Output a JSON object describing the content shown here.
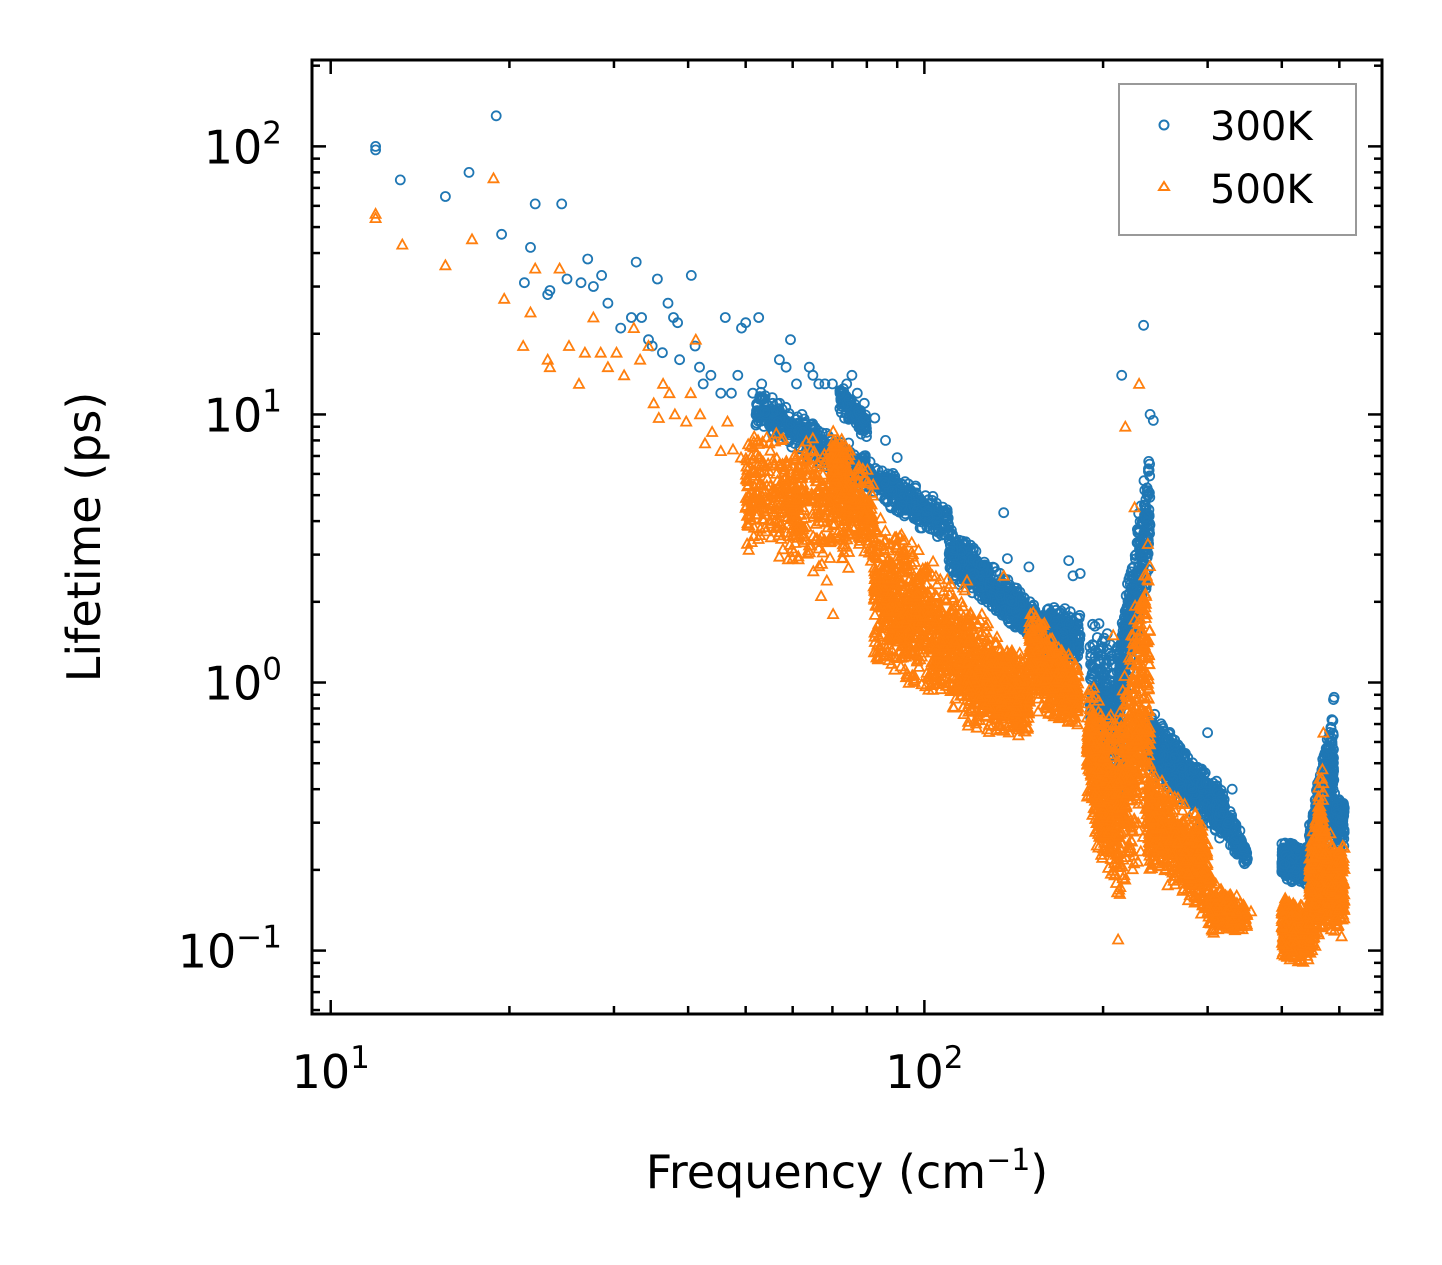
{
  "chart_data": {
    "type": "scatter",
    "xscale": "log",
    "yscale": "log",
    "xlim": [
      9.3,
      590
    ],
    "ylim": [
      0.058,
      210
    ],
    "xlabel": {
      "text": "Frequency (cm",
      "superscript": "−1",
      "suffix": ")"
    },
    "ylabel": "Lifetime (ps)",
    "x_ticks": [
      {
        "base": "10",
        "exp": "1",
        "value": 10
      },
      {
        "base": "10",
        "exp": "2",
        "value": 100
      }
    ],
    "y_ticks": [
      {
        "base": "10",
        "exp": "2",
        "value": 100
      },
      {
        "base": "10",
        "exp": "1",
        "value": 10
      },
      {
        "base": "10",
        "exp": "0",
        "value": 1
      },
      {
        "base": "10",
        "exp": "−1",
        "value": 0.1
      }
    ],
    "tick_direction": "in",
    "legend": {
      "position": "top-right"
    },
    "series": [
      {
        "name": "300K",
        "marker": "circle",
        "color": "#1f77b4",
        "points": [
          [
            11.9,
            100
          ],
          [
            11.9,
            97
          ],
          [
            13.1,
            75
          ],
          [
            15.6,
            65
          ],
          [
            17.1,
            80
          ],
          [
            19,
            130
          ],
          [
            19.4,
            47
          ],
          [
            21.2,
            31
          ],
          [
            21.7,
            42
          ],
          [
            22.1,
            61
          ],
          [
            23.2,
            28
          ],
          [
            23.4,
            29
          ],
          [
            24.5,
            61
          ],
          [
            25,
            32
          ],
          [
            26.4,
            31
          ],
          [
            27.1,
            38
          ],
          [
            27.7,
            30
          ],
          [
            28.6,
            33
          ],
          [
            29.3,
            26
          ],
          [
            30.8,
            21
          ],
          [
            32.1,
            23
          ],
          [
            32.7,
            37
          ],
          [
            33.4,
            23
          ],
          [
            34.3,
            19
          ],
          [
            34.8,
            18
          ],
          [
            35.5,
            32
          ],
          [
            36.2,
            17
          ],
          [
            37,
            26
          ],
          [
            37.8,
            23
          ],
          [
            38.4,
            22
          ],
          [
            38.7,
            16
          ],
          [
            40.5,
            33
          ],
          [
            41.1,
            18
          ],
          [
            41.8,
            15
          ],
          [
            42.4,
            13
          ],
          [
            43.7,
            14
          ],
          [
            45.4,
            12
          ],
          [
            46.2,
            23
          ],
          [
            47.3,
            12
          ],
          [
            48.5,
            14
          ],
          [
            49.2,
            21
          ],
          [
            50,
            22
          ],
          [
            51.4,
            12
          ],
          [
            52.6,
            23
          ],
          [
            53.2,
            13
          ],
          [
            55.5,
            11
          ],
          [
            57,
            16
          ],
          [
            58.5,
            15
          ],
          [
            59.5,
            19
          ],
          [
            60.9,
            13
          ],
          [
            62.2,
            10
          ],
          [
            64,
            15
          ],
          [
            64.9,
            14
          ],
          [
            66.4,
            13
          ],
          [
            68,
            13
          ],
          [
            70,
            13
          ],
          [
            72.1,
            12
          ],
          [
            74,
            13
          ],
          [
            75.5,
            14
          ],
          [
            77.1,
            12
          ],
          [
            79.2,
            11
          ],
          [
            82.5,
            9.7
          ],
          [
            86,
            8
          ],
          [
            90,
            6.9
          ]
        ],
        "bands": [
          {
            "x": [
              52,
              110
            ],
            "y_start": [
              13,
              4.6
            ],
            "y_end": [
              9,
              3.2
            ],
            "count": 700
          },
          {
            "x": [
              72,
              80
            ],
            "y_start": [
              13,
              10
            ],
            "y_end": [
              10,
              8
            ],
            "count": 120
          },
          {
            "x": [
              110,
              160
            ],
            "y_start": [
              4,
              1.8
            ],
            "y_end": [
              2.4,
              1.3
            ],
            "count": 600
          },
          {
            "x": [
              160,
              183
            ],
            "y_start": [
              2,
              1.9
            ],
            "y_end": [
              1.2,
              1.1
            ],
            "count": 250
          },
          {
            "x": [
              190,
              215
            ],
            "y_start": [
              1.8,
              1.5
            ],
            "y_end": [
              0.45,
              0.28
            ],
            "count": 300
          },
          {
            "x": [
              212,
              240
            ],
            "y_start": [
              1.5,
              8
            ],
            "y_end": [
              0.6,
              2.5
            ],
            "count": 400
          },
          {
            "x": [
              240,
              320
            ],
            "y_start": [
              0.8,
              0.4
            ],
            "y_end": [
              0.45,
              0.25
            ],
            "count": 600
          },
          {
            "x": [
              310,
              350
            ],
            "y_start": [
              0.45,
              0.24
            ],
            "y_end": [
              0.28,
              0.2
            ],
            "count": 160
          },
          {
            "x": [
              400,
              445
            ],
            "y_start": [
              0.26,
              0.25
            ],
            "y_end": [
              0.18,
              0.17
            ],
            "count": 350
          },
          {
            "x": [
              445,
              490
            ],
            "y_start": [
              0.3,
              1.0
            ],
            "y_end": [
              0.19,
              0.25
            ],
            "count": 400
          },
          {
            "x": [
              490,
              510
            ],
            "y_start": [
              0.4,
              0.4
            ],
            "y_end": [
              0.25,
              0.23
            ],
            "count": 120
          }
        ],
        "extra_points": [
          [
            136,
            4.3
          ],
          [
            138,
            2.9
          ],
          [
            150,
            2.7
          ],
          [
            175,
            2.85
          ],
          [
            178,
            2.5
          ],
          [
            183,
            2.55
          ],
          [
            215,
            14
          ],
          [
            234,
            21.5
          ],
          [
            240,
            10
          ],
          [
            243,
            9.5
          ],
          [
            300,
            0.42
          ],
          [
            330,
            0.4
          ],
          [
            340,
            0.28
          ],
          [
            350,
            0.22
          ],
          [
            325,
            0.3
          ],
          [
            300,
            0.65
          ]
        ]
      },
      {
        "name": "500K",
        "marker": "triangle",
        "color": "#ff7f0e",
        "points": [
          [
            11.9,
            56
          ],
          [
            11.9,
            54
          ],
          [
            13.2,
            43
          ],
          [
            15.6,
            36
          ],
          [
            17.3,
            45
          ],
          [
            18.8,
            76
          ],
          [
            19.6,
            27
          ],
          [
            21.1,
            18
          ],
          [
            21.7,
            24
          ],
          [
            22.1,
            35
          ],
          [
            23.2,
            16
          ],
          [
            23.4,
            15
          ],
          [
            24.3,
            35
          ],
          [
            25.2,
            18
          ],
          [
            26.2,
            13
          ],
          [
            26.8,
            17
          ],
          [
            27.7,
            23
          ],
          [
            28.5,
            17
          ],
          [
            29.3,
            15
          ],
          [
            30.3,
            17
          ],
          [
            31.2,
            14
          ],
          [
            32.4,
            21
          ],
          [
            33.2,
            16
          ],
          [
            34.3,
            18
          ],
          [
            35,
            11
          ],
          [
            35.7,
            9.7
          ],
          [
            36.3,
            13
          ],
          [
            37.2,
            12
          ],
          [
            38,
            10
          ],
          [
            39.7,
            9.4
          ],
          [
            40.4,
            12
          ],
          [
            41.2,
            19
          ],
          [
            41.9,
            10
          ],
          [
            42.7,
            7.8
          ],
          [
            43.9,
            8.6
          ],
          [
            45.4,
            7.3
          ],
          [
            46.6,
            9.4
          ],
          [
            47.6,
            7.4
          ],
          [
            49.1,
            6.9
          ],
          [
            50.2,
            6.4
          ],
          [
            51.4,
            6.1
          ],
          [
            53.4,
            7.9
          ],
          [
            54.8,
            7.8
          ],
          [
            56.3,
            8.5
          ],
          [
            58.1,
            6.1
          ],
          [
            59.9,
            4.7
          ],
          [
            61.1,
            4.8
          ],
          [
            63.4,
            3.4
          ],
          [
            65,
            2.6
          ],
          [
            67,
            2.1
          ],
          [
            68.5,
            2.4
          ],
          [
            70.2,
            1.8
          ]
        ],
        "bands": [
          {
            "x": [
              50,
              75
            ],
            "y_start": [
              9,
              8
            ],
            "y_end": [
              3,
              2.5
            ],
            "count": 500
          },
          {
            "x": [
              70,
              82
            ],
            "y_start": [
              9,
              6
            ],
            "y_end": [
              5,
              2.5
            ],
            "count": 250
          },
          {
            "x": [
              82,
              118
            ],
            "y_start": [
              5,
              2.2
            ],
            "y_end": [
              1.1,
              0.7
            ],
            "count": 800
          },
          {
            "x": [
              118,
              150
            ],
            "y_start": [
              2,
              1.2
            ],
            "y_end": [
              0.65,
              0.6
            ],
            "count": 700
          },
          {
            "x": [
              150,
              182
            ],
            "y_start": [
              2,
              1.2
            ],
            "y_end": [
              0.8,
              0.65
            ],
            "count": 450
          },
          {
            "x": [
              188,
              210
            ],
            "y_start": [
              1.1,
              0.8
            ],
            "y_end": [
              0.32,
              0.14
            ],
            "count": 400
          },
          {
            "x": [
              210,
              240
            ],
            "y_start": [
              0.8,
              4.5
            ],
            "y_end": [
              0.14,
              0.25
            ],
            "count": 500
          },
          {
            "x": [
              238,
              300
            ],
            "y_start": [
              0.5,
              0.3
            ],
            "y_end": [
              0.2,
              0.13
            ],
            "count": 600
          },
          {
            "x": [
              300,
              350
            ],
            "y_start": [
              0.2,
              0.15
            ],
            "y_end": [
              0.11,
              0.12
            ],
            "count": 250
          },
          {
            "x": [
              400,
              445
            ],
            "y_start": [
              0.16,
              0.15
            ],
            "y_end": [
              0.09,
              0.09
            ],
            "count": 400
          },
          {
            "x": [
              445,
              470
            ],
            "y_start": [
              0.25,
              0.6
            ],
            "y_end": [
              0.09,
              0.1
            ],
            "count": 350
          },
          {
            "x": [
              470,
              510
            ],
            "y_start": [
              0.3,
              0.25
            ],
            "y_end": [
              0.12,
              0.11
            ],
            "count": 300
          }
        ],
        "extra_points": [
          [
            118,
            2.4
          ],
          [
            125,
            1.8
          ],
          [
            136,
            2.5
          ],
          [
            230,
            13
          ],
          [
            218,
            9
          ],
          [
            226,
            4.5
          ],
          [
            208,
            1.5
          ],
          [
            212,
            0.11
          ],
          [
            305,
            0.12
          ],
          [
            340,
            0.15
          ],
          [
            355,
            0.14
          ],
          [
            470,
            0.65
          ]
        ]
      }
    ]
  }
}
